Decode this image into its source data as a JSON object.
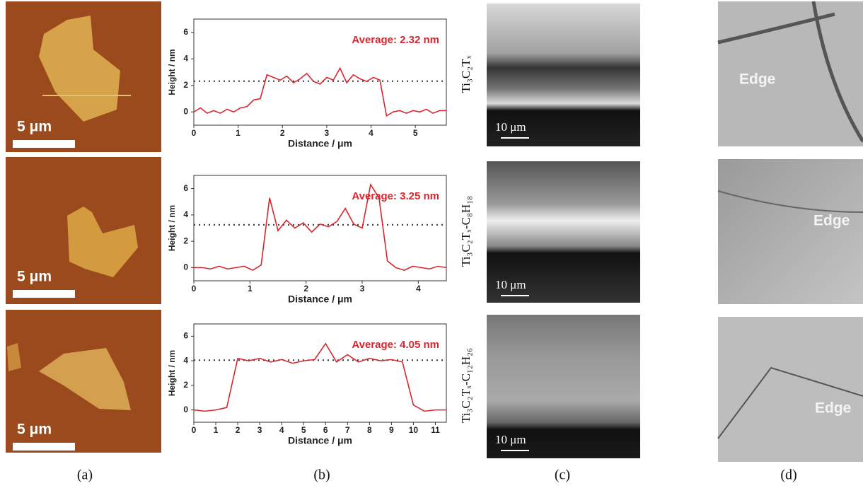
{
  "chart_data": [
    {
      "type": "line",
      "annotation": "Average: 2.32 nm",
      "average": 2.32,
      "xlabel": "Distance / μm",
      "ylabel": "Height / nm",
      "color": "#d9262e",
      "x": [
        0,
        0.15,
        0.3,
        0.45,
        0.6,
        0.75,
        0.9,
        1.05,
        1.2,
        1.35,
        1.5,
        1.65,
        1.8,
        1.95,
        2.1,
        2.25,
        2.4,
        2.55,
        2.7,
        2.85,
        3.0,
        3.15,
        3.3,
        3.45,
        3.6,
        3.75,
        3.9,
        4.05,
        4.2,
        4.35,
        4.5,
        4.65,
        4.8,
        4.95,
        5.1,
        5.25,
        5.4,
        5.55,
        5.7
      ],
      "values": [
        0,
        0.3,
        -0.1,
        0.1,
        -0.1,
        0.2,
        0,
        0.3,
        0.4,
        0.9,
        1.0,
        2.8,
        2.6,
        2.4,
        2.7,
        2.2,
        2.5,
        2.9,
        2.3,
        2.1,
        2.6,
        2.4,
        3.3,
        2.2,
        2.8,
        2.5,
        2.3,
        2.6,
        2.4,
        -0.3,
        0,
        0.1,
        -0.1,
        0.1,
        0,
        0.2,
        -0.1,
        0.1,
        0.1
      ],
      "xlim": [
        0,
        5.7
      ],
      "xticks": [
        0,
        1,
        2,
        3,
        4,
        5
      ],
      "ylim": [
        -1,
        7
      ],
      "yticks": [
        0,
        2,
        4,
        6
      ]
    },
    {
      "type": "line",
      "annotation": "Average: 3.25 nm",
      "average": 3.25,
      "xlabel": "Distance / μm",
      "ylabel": "Height / nm",
      "color": "#d9262e",
      "x": [
        0,
        0.15,
        0.3,
        0.45,
        0.6,
        0.75,
        0.9,
        1.05,
        1.2,
        1.35,
        1.5,
        1.65,
        1.8,
        1.95,
        2.1,
        2.25,
        2.4,
        2.55,
        2.7,
        2.85,
        3.0,
        3.15,
        3.3,
        3.45,
        3.6,
        3.75,
        3.9,
        4.05,
        4.2,
        4.35,
        4.5
      ],
      "values": [
        0,
        0,
        -0.1,
        0.1,
        -0.1,
        0,
        0.1,
        -0.2,
        0.2,
        5.3,
        2.8,
        3.6,
        3.0,
        3.4,
        2.7,
        3.3,
        3.1,
        3.5,
        4.5,
        3.3,
        3.0,
        6.3,
        5.3,
        0.5,
        0,
        -0.2,
        0.1,
        0,
        -0.1,
        0.1,
        0
      ],
      "xlim": [
        0,
        4.5
      ],
      "xticks": [
        0,
        1,
        2,
        3,
        4
      ],
      "ylim": [
        -1,
        7
      ],
      "yticks": [
        0,
        2,
        4,
        6
      ]
    },
    {
      "type": "line",
      "annotation": "Average: 4.05 nm",
      "average": 4.05,
      "xlabel": "Distance / μm",
      "ylabel": "Height / nm",
      "color": "#d9262e",
      "x": [
        0,
        0.5,
        1,
        1.5,
        2,
        2.5,
        3,
        3.5,
        4,
        4.5,
        5,
        5.5,
        6,
        6.5,
        7,
        7.5,
        8,
        8.5,
        9,
        9.5,
        10,
        10.5,
        11,
        11.5
      ],
      "values": [
        0,
        -0.1,
        0,
        0.2,
        4.2,
        4.0,
        4.2,
        3.9,
        4.1,
        3.8,
        4.0,
        4.1,
        5.4,
        3.9,
        4.5,
        3.9,
        4.2,
        4.0,
        4.1,
        3.9,
        0.4,
        -0.1,
        0,
        0
      ],
      "xlim": [
        0,
        11.5
      ],
      "xticks": [
        0,
        1,
        2,
        3,
        4,
        5,
        6,
        7,
        8,
        9,
        10,
        11
      ],
      "ylim": [
        -1,
        7
      ],
      "yticks": [
        0,
        2,
        4,
        6
      ]
    }
  ],
  "panel_a": {
    "label": "(a)",
    "scale_bars": [
      "5 μm",
      "5 μm",
      "5 μm"
    ]
  },
  "panel_b": {
    "label": "(b)"
  },
  "panel_c": {
    "label": "(c)",
    "samples": [
      "Ti₃C₂Tₓ",
      "Ti₃C₂Tₓ-C₈H₁₈",
      "Ti₃C₂Tₓ-C₁₂H₂₆"
    ],
    "scale_bars": [
      "10 μm",
      "10 μm",
      "10 μm"
    ]
  },
  "panel_d": {
    "label": "(d)",
    "annotations": [
      "Edge",
      "Edge",
      "Edge"
    ]
  }
}
